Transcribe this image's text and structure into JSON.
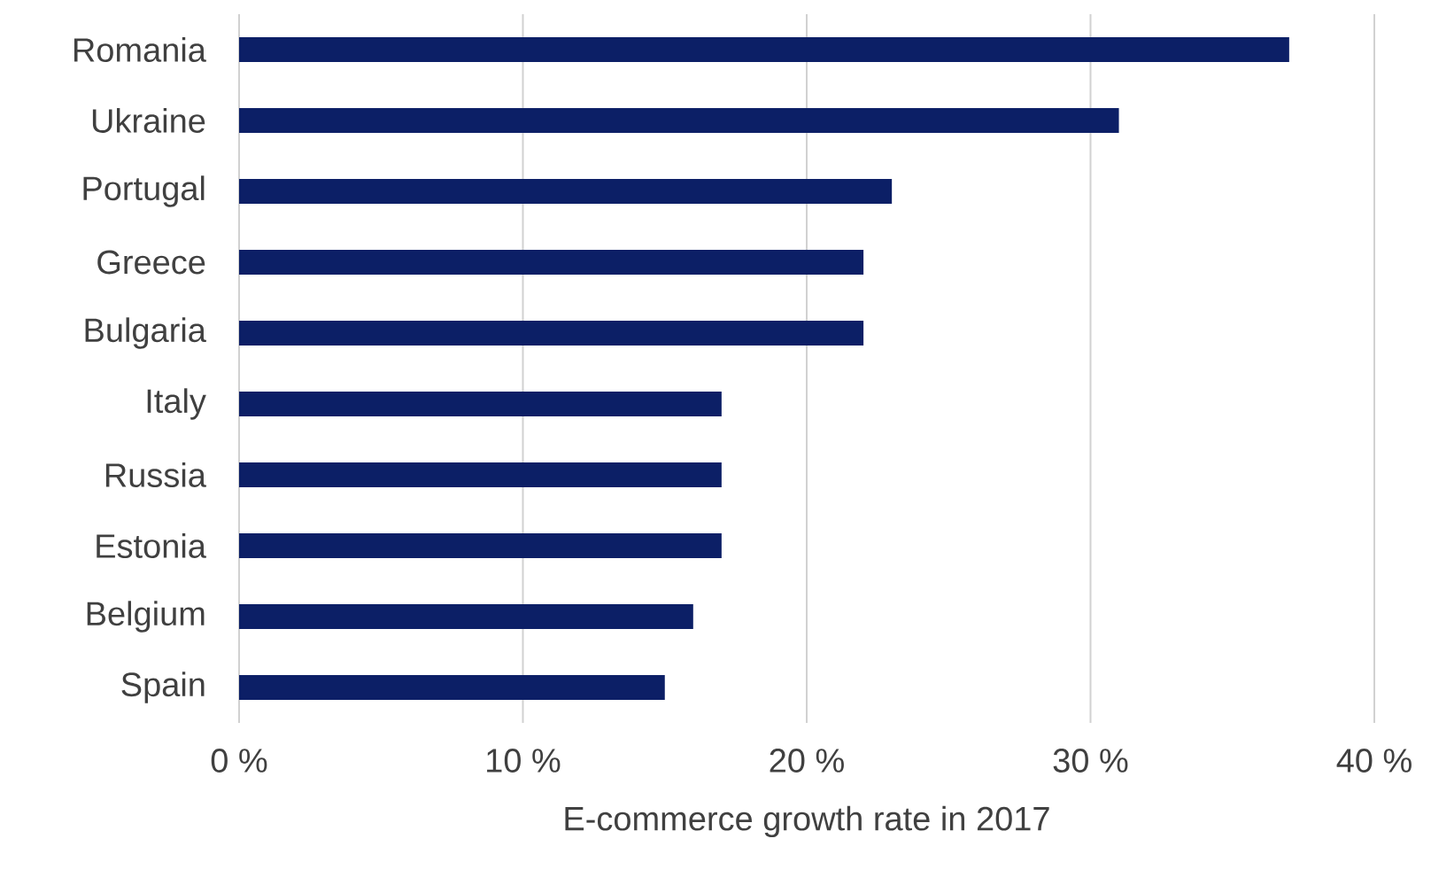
{
  "chart_data": {
    "type": "bar",
    "orientation": "horizontal",
    "xlabel": "E-commerce growth rate in 2017",
    "categories": [
      "Romania",
      "Ukraine",
      "Portugal",
      "Greece",
      "Bulgaria",
      "Italy",
      "Russia",
      "Estonia",
      "Belgium",
      "Spain"
    ],
    "values": [
      37,
      31,
      23,
      22,
      22,
      17,
      17,
      17,
      16,
      15
    ],
    "color": "#0c1f66",
    "xlim": [
      0,
      40
    ],
    "xticks": [
      {
        "value": 0,
        "label": "0 %"
      },
      {
        "value": 10,
        "label": "10 %"
      },
      {
        "value": 20,
        "label": "20 %"
      },
      {
        "value": 30,
        "label": "30 %"
      },
      {
        "value": 40,
        "label": "40 %"
      }
    ],
    "grid": "x"
  }
}
